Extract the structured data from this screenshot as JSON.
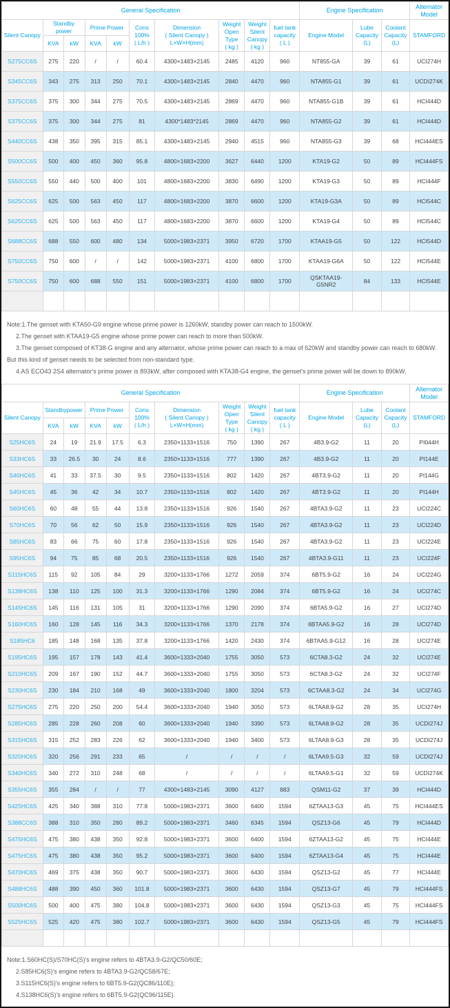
{
  "colors": {
    "accent_cyan": "#00a2e4",
    "model_link_cyan": "#2bb1e8",
    "stripe_blue": "#cfe9f9",
    "label_column_bg": "#f0f0f0",
    "body_text": "#404040",
    "grid_line": "#d6d6d6",
    "note_text": "#5a5a5a",
    "page_border": "#141414"
  },
  "table1": {
    "sections": {
      "general": "General Specification",
      "engine": "Engine Specification",
      "alternator": "Alternator\nModel"
    },
    "headers": {
      "silent_canopy": "Silent Canopy",
      "standby": "Standby\npower",
      "prime": "Prime Power",
      "kva_standby": "KVA",
      "kw_standby": "kW",
      "kva_prime": "KVA",
      "kw_prime": "kW",
      "cons": "Cons\n100%\n( L/h )",
      "dimension": "Dimension\n( Silent Canopy )\nL×W×H(mm)",
      "weight_open": "Weight\nOpen Type\n( kg )",
      "weight_silent": "Weight\nSilent\nCanopy\n( kg )",
      "fuel_tank": "fuel tank\ncapacity\n( L )",
      "engine_model": "Engine Model",
      "lube": "Lube\nCapacity\n(L)",
      "coolant": "Coolant\nCapacity\n(L)",
      "stamford": "STAMFORD"
    },
    "rows": [
      [
        "S275CC6S",
        "275",
        "220",
        "/",
        "/",
        "60.4",
        "4300×1483×2145",
        "2485",
        "4120",
        "960",
        "NT855-GA",
        "39",
        "61",
        "UCI274H"
      ],
      [
        "S345CC6S",
        "343",
        "275",
        "313",
        "250",
        "70.1",
        "4300×1483×2145",
        "2840",
        "4470",
        "960",
        "NTA855-G1",
        "39",
        "61",
        "UCDI274K"
      ],
      [
        "S375CC6S",
        "375",
        "300",
        "344",
        "275",
        "70.5",
        "4300×1483×2145",
        "2869",
        "4470",
        "960",
        "NTA855-G1B",
        "39",
        "61",
        "HCI444D"
      ],
      [
        "S375CC6S",
        "375",
        "300",
        "344",
        "275",
        "81",
        "4300*1483*2145",
        "2869",
        "4470",
        "960",
        "NTA855-G2",
        "39",
        "61",
        "HCI444D"
      ],
      [
        "S440CC6S",
        "438",
        "350",
        "395",
        "315",
        "85.1",
        "4300×1483×2145",
        "2940",
        "4515",
        "960",
        "NTA855-G3",
        "39",
        "68",
        "HCI444ES"
      ],
      [
        "S500CC6S",
        "500",
        "400",
        "450",
        "360",
        "95.8",
        "4800×1683×2200",
        "3627",
        "6440",
        "1200",
        "KTA19-G2",
        "50",
        "89",
        "HCI444FS"
      ],
      [
        "S550CC6S",
        "550",
        "440",
        "500",
        "400",
        "101",
        "4800×1683×2200",
        "3830",
        "6490",
        "1200",
        "KTA19-G3",
        "50",
        "89",
        "HCI444F"
      ],
      [
        "S625CC6S",
        "625",
        "500",
        "563",
        "450",
        "117",
        "4800×1683×2200",
        "3870",
        "6600",
        "1200",
        "KTA19-G3A",
        "50",
        "89",
        "HCI544C"
      ],
      [
        "S625CC6S",
        "625",
        "500",
        "563",
        "450",
        "117",
        "4800×1683×2200",
        "3870",
        "6600",
        "1200",
        "KTA19-G4",
        "50",
        "89",
        "HCI544C"
      ],
      [
        "S688CC6S",
        "688",
        "550",
        "600",
        "480",
        "134",
        "5000×1983×2371",
        "3950",
        "6720",
        "1700",
        "KTAA19-G5",
        "50",
        "122",
        "HCI544D"
      ],
      [
        "S750CC6S",
        "750",
        "600",
        "/",
        "/",
        "142",
        "5000×1983×2371",
        "4100",
        "6800",
        "1700",
        "KTAA19-G6A",
        "50",
        "122",
        "HCI544E"
      ],
      [
        "S750CC6S",
        "750",
        "600",
        "688",
        "550",
        "151",
        "5000×1983×2371",
        "4100",
        "6800",
        "1700",
        "QSKTAA19-G5NR2",
        "84",
        "133",
        "HCI544E"
      ]
    ]
  },
  "note1": {
    "lines": [
      "Note:1.The genset with KTA50-G9 engine whose prime power is 1260kW, standby power can reach to 1500kW.",
      "2.The genset with KTAA19-G5 engine whose prime power can reach to more than 500kW.",
      "3.The genset composed of KT38-G engine and any alternator, whose prime power can reach to a max of 620kW and standby power can reach to 680kW. But this kind of genset needs to be selected from non-standard type.",
      "4.AS ECO43 2S4 alternator's prime power is 893kW, after composed with KTA38-G4 engine, the genset's prime power will be down to 890kW."
    ]
  },
  "table2": {
    "sections": {
      "general": "General Specification",
      "engine": "Engine Specification",
      "alternator": "Alternator\nModel"
    },
    "headers": {
      "silent_canopy": "Silent Canopy",
      "standby": "Standbypower",
      "prime": "Prime Power",
      "kva_standby": "KVA",
      "kw_standby": "kW",
      "kva_prime": "KVA",
      "kw_prime": "kW",
      "cons": "Cons\n100%\n( L/h )",
      "dimension": "Dimension\n( Silent Canopy )\nL×W×H(mm)",
      "weight_open": "Weight\nOpen Type\n( kg )",
      "weight_silent": "Weight\nSilent\nCanopy\n( kg )",
      "fuel_tank": "fuel tank\ncapacity\n( L )",
      "engine_model": "Engine Model",
      "lube": "Lube\nCapacity\n(L)",
      "coolant": "Coolant\nCapacity\n(L)",
      "stamford": "STAMFORD"
    },
    "rows": [
      [
        "S25HC6S",
        "24",
        "19",
        "21.9",
        "17.5",
        "6.3",
        "2350×1133×1516",
        "750",
        "1390",
        "267",
        "4B3.9-G2",
        "11",
        "20",
        "PI044H"
      ],
      [
        "S33HC6S",
        "33",
        "26.5",
        "30",
        "24",
        "8.6",
        "2350×1133×1516",
        "777",
        "1390",
        "267",
        "4B3.9-G2",
        "11",
        "20",
        "PI144E"
      ],
      [
        "S40HC6S",
        "41",
        "33",
        "37.5",
        "30",
        "9.5",
        "2350×1133×1516",
        "802",
        "1420",
        "267",
        "4BT3.9-G2",
        "11",
        "20",
        "PI144G"
      ],
      [
        "S45HC6S",
        "45",
        "36",
        "42",
        "34",
        "10.7",
        "2350×1133×1516",
        "802",
        "1420",
        "267",
        "4BT3.9-G2",
        "11",
        "20",
        "PI144H"
      ],
      [
        "S60HC6S",
        "60",
        "48",
        "55",
        "44",
        "13.8",
        "2350×1133×1516",
        "926",
        "1540",
        "267",
        "4BTA3.9-G2",
        "11",
        "23",
        "UCI224C"
      ],
      [
        "S70HC6S",
        "70",
        "56",
        "62",
        "50",
        "15.9",
        "2350×1133×1516",
        "926",
        "1540",
        "267",
        "4BTA3.9-G2",
        "11",
        "23",
        "UCI224D"
      ],
      [
        "S85HC6S",
        "83",
        "66",
        "75",
        "60",
        "17.8",
        "2350×1133×1516",
        "926",
        "1540",
        "267",
        "4BTA3.9-G2",
        "11",
        "23",
        "UCI224E"
      ],
      [
        "S95HC6S",
        "94",
        "75",
        "85",
        "68",
        "20.5",
        "2350×1133×1516",
        "926",
        "1540",
        "267",
        "4BTA3.9-G11",
        "11",
        "23",
        "UCI224F"
      ],
      [
        "S115HC6S",
        "115",
        "92",
        "105",
        "84",
        "29",
        "3200×1133×1766",
        "1272",
        "2059",
        "374",
        "6BT5.9-G2",
        "16",
        "24",
        "UCI224G"
      ],
      [
        "S138HC6S",
        "138",
        "110",
        "125",
        "100",
        "31.3",
        "3200×1133×1766",
        "1290",
        "2084",
        "374",
        "6BT5.9-G2",
        "16",
        "24",
        "UCI274C"
      ],
      [
        "S145HC6S",
        "145",
        "116",
        "131",
        "105",
        "31",
        "3200×1133×1766",
        "1290",
        "2090",
        "374",
        "6BTA5.9-G2",
        "16",
        "27",
        "UCI274D"
      ],
      [
        "S160HC6S",
        "160",
        "128",
        "145",
        "116",
        "34.3",
        "3200×1133×1766",
        "1370",
        "2178",
        "374",
        "6BTAA5.9-G2",
        "16",
        "28",
        "UCI274D"
      ],
      [
        "S185HC6",
        "185",
        "148",
        "168",
        "135",
        "37.8",
        "3200×1133×1766",
        "1420",
        "2430",
        "374",
        "6BTAA5.9-G12",
        "16",
        "28",
        "UCI274E"
      ],
      [
        "S195HC6S",
        "195",
        "157",
        "178",
        "143",
        "41.4",
        "3600×1333×2040",
        "1755",
        "3050",
        "573",
        "6CTA8.3-G2",
        "24",
        "32",
        "UCI274E"
      ],
      [
        "S210HC6S",
        "209",
        "167",
        "190",
        "152",
        "44.7",
        "3600×1333×2040",
        "1755",
        "3050",
        "573",
        "6CTA8.3-G2",
        "24",
        "32",
        "UCI274F"
      ],
      [
        "S230HC6S",
        "230",
        "184",
        "210",
        "168",
        "49",
        "3600×1333×2040",
        "1800",
        "3204",
        "573",
        "6CTAA8.3-G2",
        "24",
        "34",
        "UCI274G"
      ],
      [
        "S275HC6S",
        "275",
        "220",
        "250",
        "200",
        "54.4",
        "3600×1333×2040",
        "1940",
        "3050",
        "573",
        "6LTAA8.9-G2",
        "28",
        "35",
        "UCI274H"
      ],
      [
        "S285HC6S",
        "285",
        "228",
        "260",
        "208",
        "60",
        "3600×1333×2040",
        "1940",
        "3390",
        "573",
        "6LTAA8.9-G2",
        "28",
        "35",
        "UCDI274J"
      ],
      [
        "S315HC6S",
        "315",
        "252",
        "283",
        "226",
        "62",
        "3600×1333×2040",
        "1940",
        "3400",
        "573",
        "6LTAA8.9-G3",
        "28",
        "35",
        "UCDI274J"
      ],
      [
        "S320HC6S",
        "320",
        "256",
        "291",
        "233",
        "65",
        "/",
        "/",
        "/",
        "/",
        "6LTAA9.5-G3",
        "32",
        "59",
        "UCDI274J"
      ],
      [
        "S340HC6S",
        "340",
        "272",
        "310",
        "248",
        "68",
        "/",
        "/",
        "/",
        "/",
        "6LTAA9.5-G1",
        "32",
        "59",
        "UCDI274K"
      ],
      [
        "S355HC6S",
        "355",
        "284",
        "/",
        "/",
        "77",
        "4300×1483×2145",
        "3090",
        "4127",
        "883",
        "QSM11-G2",
        "37",
        "39",
        "HCI444D"
      ],
      [
        "S425HC6S",
        "425",
        "340",
        "388",
        "310",
        "77.8",
        "5000×1983×2371",
        "3600",
        "6400",
        "1594",
        "6ZTAA13-G3",
        "45",
        "75",
        "HCI444ES"
      ],
      [
        "S388CC6S",
        "388",
        "310",
        "350",
        "280",
        "89.2",
        "5000×1983×2371",
        "3460",
        "6345",
        "1594",
        "QSZ13-G6",
        "45",
        "79",
        "HCI444D"
      ],
      [
        "S475HC6S",
        "475",
        "380",
        "438",
        "350",
        "92.8",
        "5000×1983×2371",
        "3600",
        "6400",
        "1594",
        "6ZTAA13-G2",
        "45",
        "75",
        "HCI444E"
      ],
      [
        "S475HC6S",
        "475",
        "380",
        "438",
        "350",
        "95.2",
        "5000×1983×2371",
        "3600",
        "6400",
        "1594",
        "6ZTAA13-G4",
        "45",
        "75",
        "HCI444E"
      ],
      [
        "S470HC6S",
        "469",
        "375",
        "438",
        "350",
        "90.7",
        "5000×1983×2371",
        "3600",
        "6430",
        "1594",
        "QSZ13-G2",
        "45",
        "77",
        "HCI444E"
      ],
      [
        "S488HC6S",
        "488",
        "390",
        "450",
        "360",
        "101.8",
        "5000×1983×2371",
        "3600",
        "6430",
        "1594",
        "QSZ13-G7",
        "45",
        "79",
        "HCI444FS"
      ],
      [
        "S500HC6S",
        "500",
        "400",
        "475",
        "380",
        "104.8",
        "5000×1983×2371",
        "3600",
        "6430",
        "1594",
        "QSZ13-G3",
        "45",
        "75",
        "HCI444FS"
      ],
      [
        "S525HC6S",
        "525",
        "420",
        "475",
        "380",
        "102.7",
        "5000×1983×2371",
        "3600",
        "6430",
        "1594",
        "QSZ13-G5",
        "45",
        "79",
        "HCI444FS"
      ]
    ]
  },
  "note2": {
    "lines": [
      "Note:1.S60HC(S)/S70HC(S)'s engine refers to 4BTA3.9-G2/QC50/60E;",
      "2.S85HC6(S)'s engine refers to 4BTA3.9-G2/QC58/67E;",
      "3.S115HC6(S)'s engine refers to 6BT5.9-G2(QC86/110E);",
      "4.S138HC6(S)'s engine refers to 6BT5.9-G2(QC96/115E)."
    ]
  }
}
